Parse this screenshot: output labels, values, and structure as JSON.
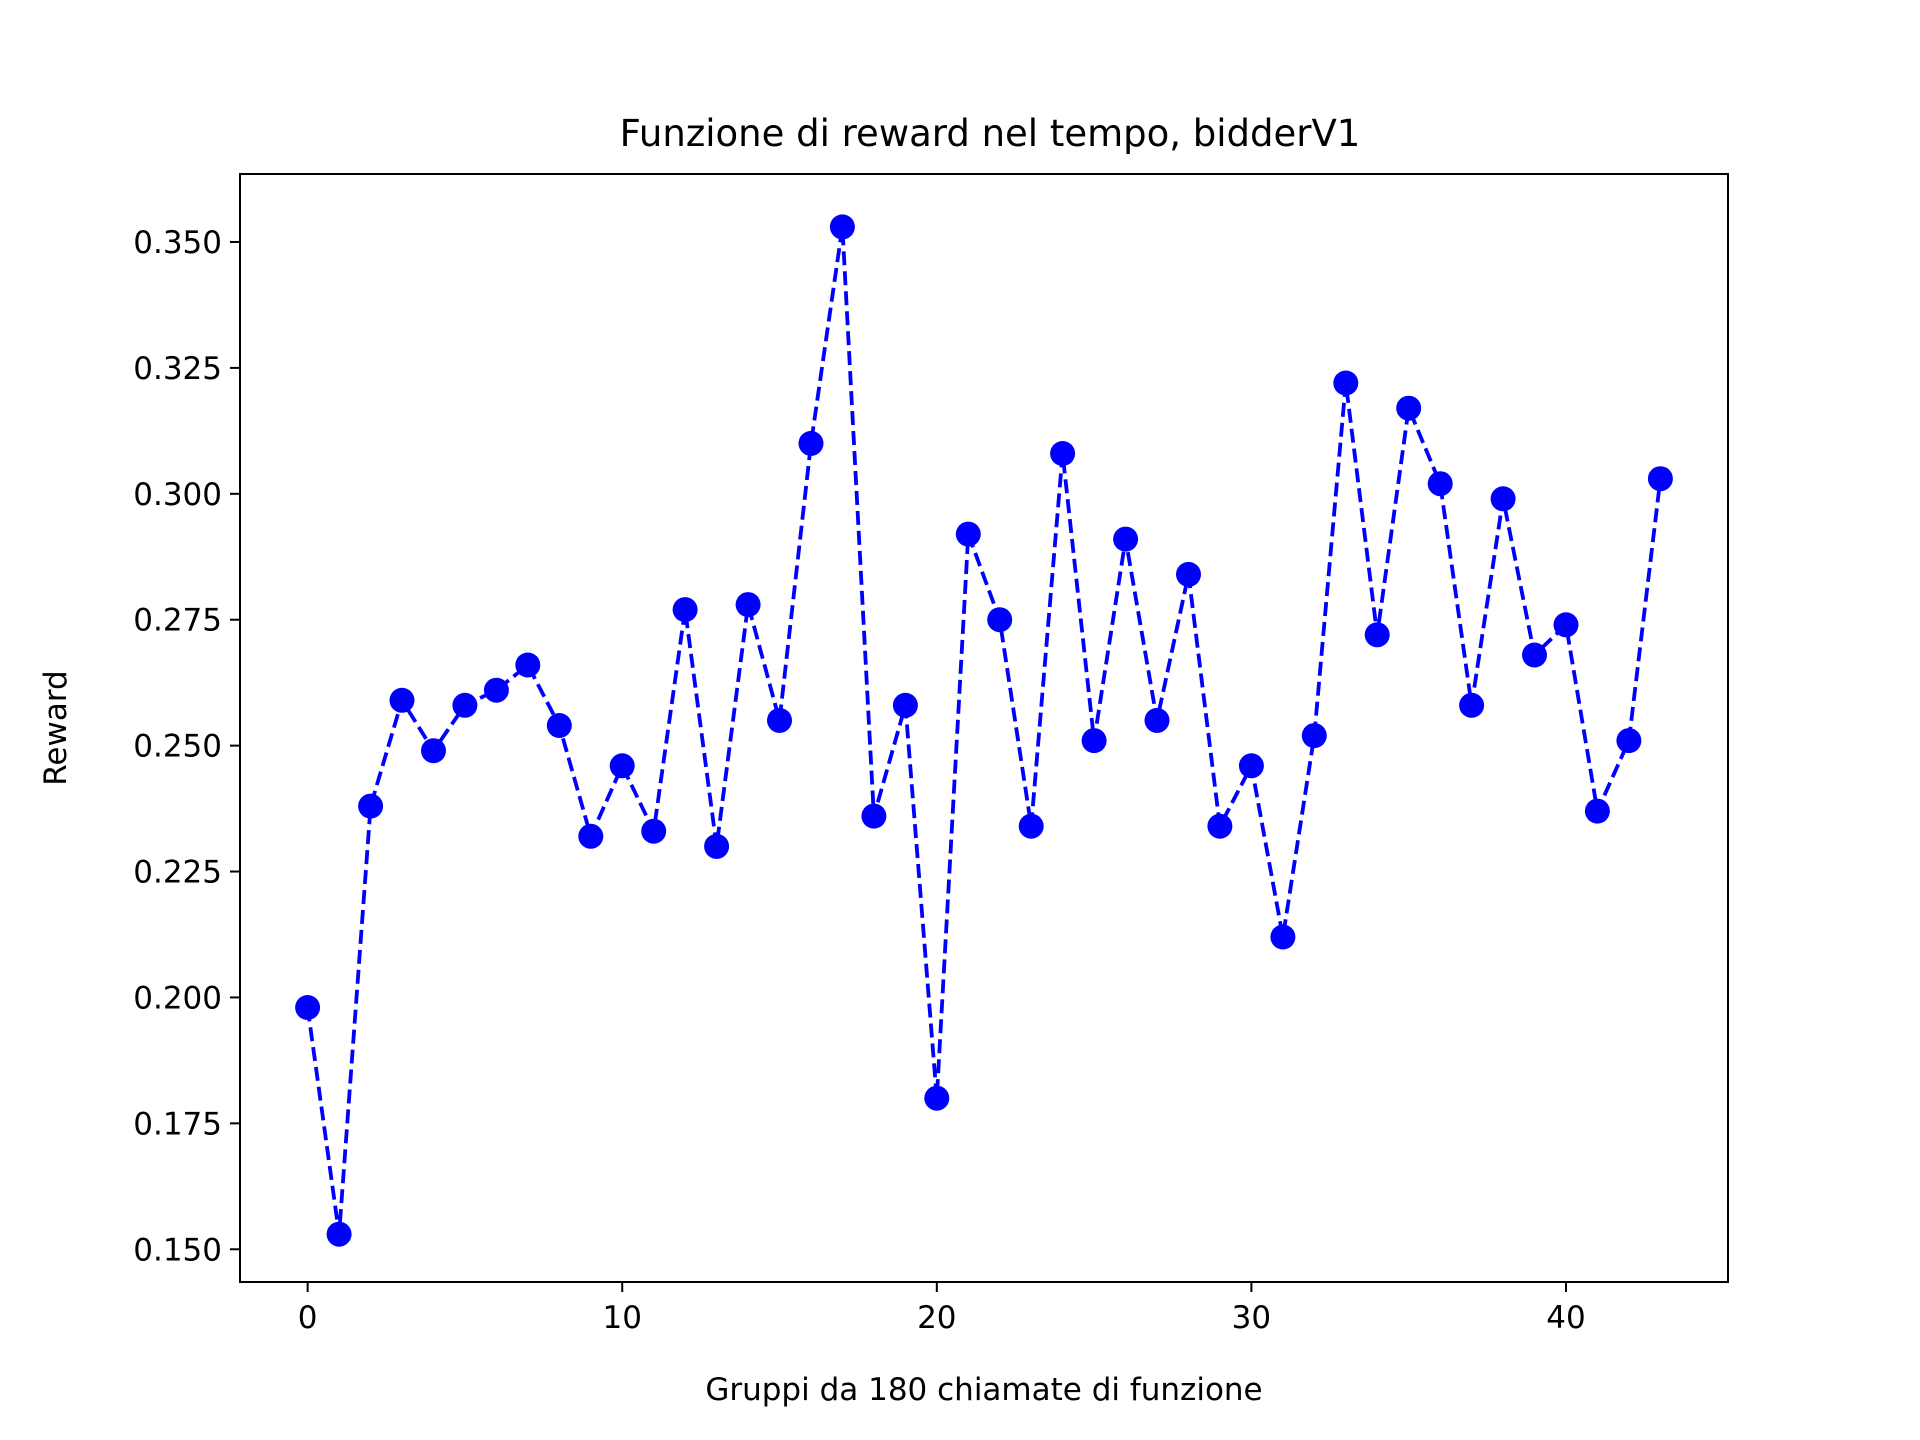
{
  "chart_data": {
    "type": "line",
    "title": "Funzione di reward nel tempo, bidderV1",
    "xlabel": "Gruppi da 180 chiamate di funzione",
    "ylabel": "Reward",
    "xlim": [
      -2.15,
      45.15
    ],
    "ylim": [
      0.1435,
      0.3635
    ],
    "xticks": [
      0,
      10,
      20,
      30,
      40
    ],
    "xtick_labels": [
      "0",
      "10",
      "20",
      "30",
      "40"
    ],
    "yticks": [
      0.15,
      0.175,
      0.2,
      0.225,
      0.25,
      0.275,
      0.3,
      0.325,
      0.35
    ],
    "ytick_labels": [
      "0.150",
      "0.175",
      "0.200",
      "0.225",
      "0.250",
      "0.275",
      "0.300",
      "0.325",
      "0.350"
    ],
    "grid": false,
    "legend": "none",
    "series": [
      {
        "color": "#0000ff",
        "line_style": "dashed",
        "marker": "circle",
        "x": [
          0,
          1,
          2,
          3,
          4,
          5,
          6,
          7,
          8,
          9,
          10,
          11,
          12,
          13,
          14,
          15,
          16,
          17,
          18,
          19,
          20,
          21,
          22,
          23,
          24,
          25,
          26,
          27,
          28,
          29,
          30,
          31,
          32,
          33,
          34,
          35,
          36,
          37,
          38,
          39,
          40,
          41,
          42,
          43
        ],
        "y": [
          0.198,
          0.153,
          0.238,
          0.259,
          0.249,
          0.258,
          0.261,
          0.266,
          0.254,
          0.232,
          0.246,
          0.233,
          0.277,
          0.23,
          0.278,
          0.255,
          0.31,
          0.353,
          0.236,
          0.258,
          0.18,
          0.292,
          0.275,
          0.234,
          0.308,
          0.251,
          0.291,
          0.255,
          0.284,
          0.234,
          0.246,
          0.212,
          0.252,
          0.322,
          0.272,
          0.317,
          0.302,
          0.258,
          0.299,
          0.268,
          0.274,
          0.237,
          0.251,
          0.303
        ]
      }
    ]
  }
}
